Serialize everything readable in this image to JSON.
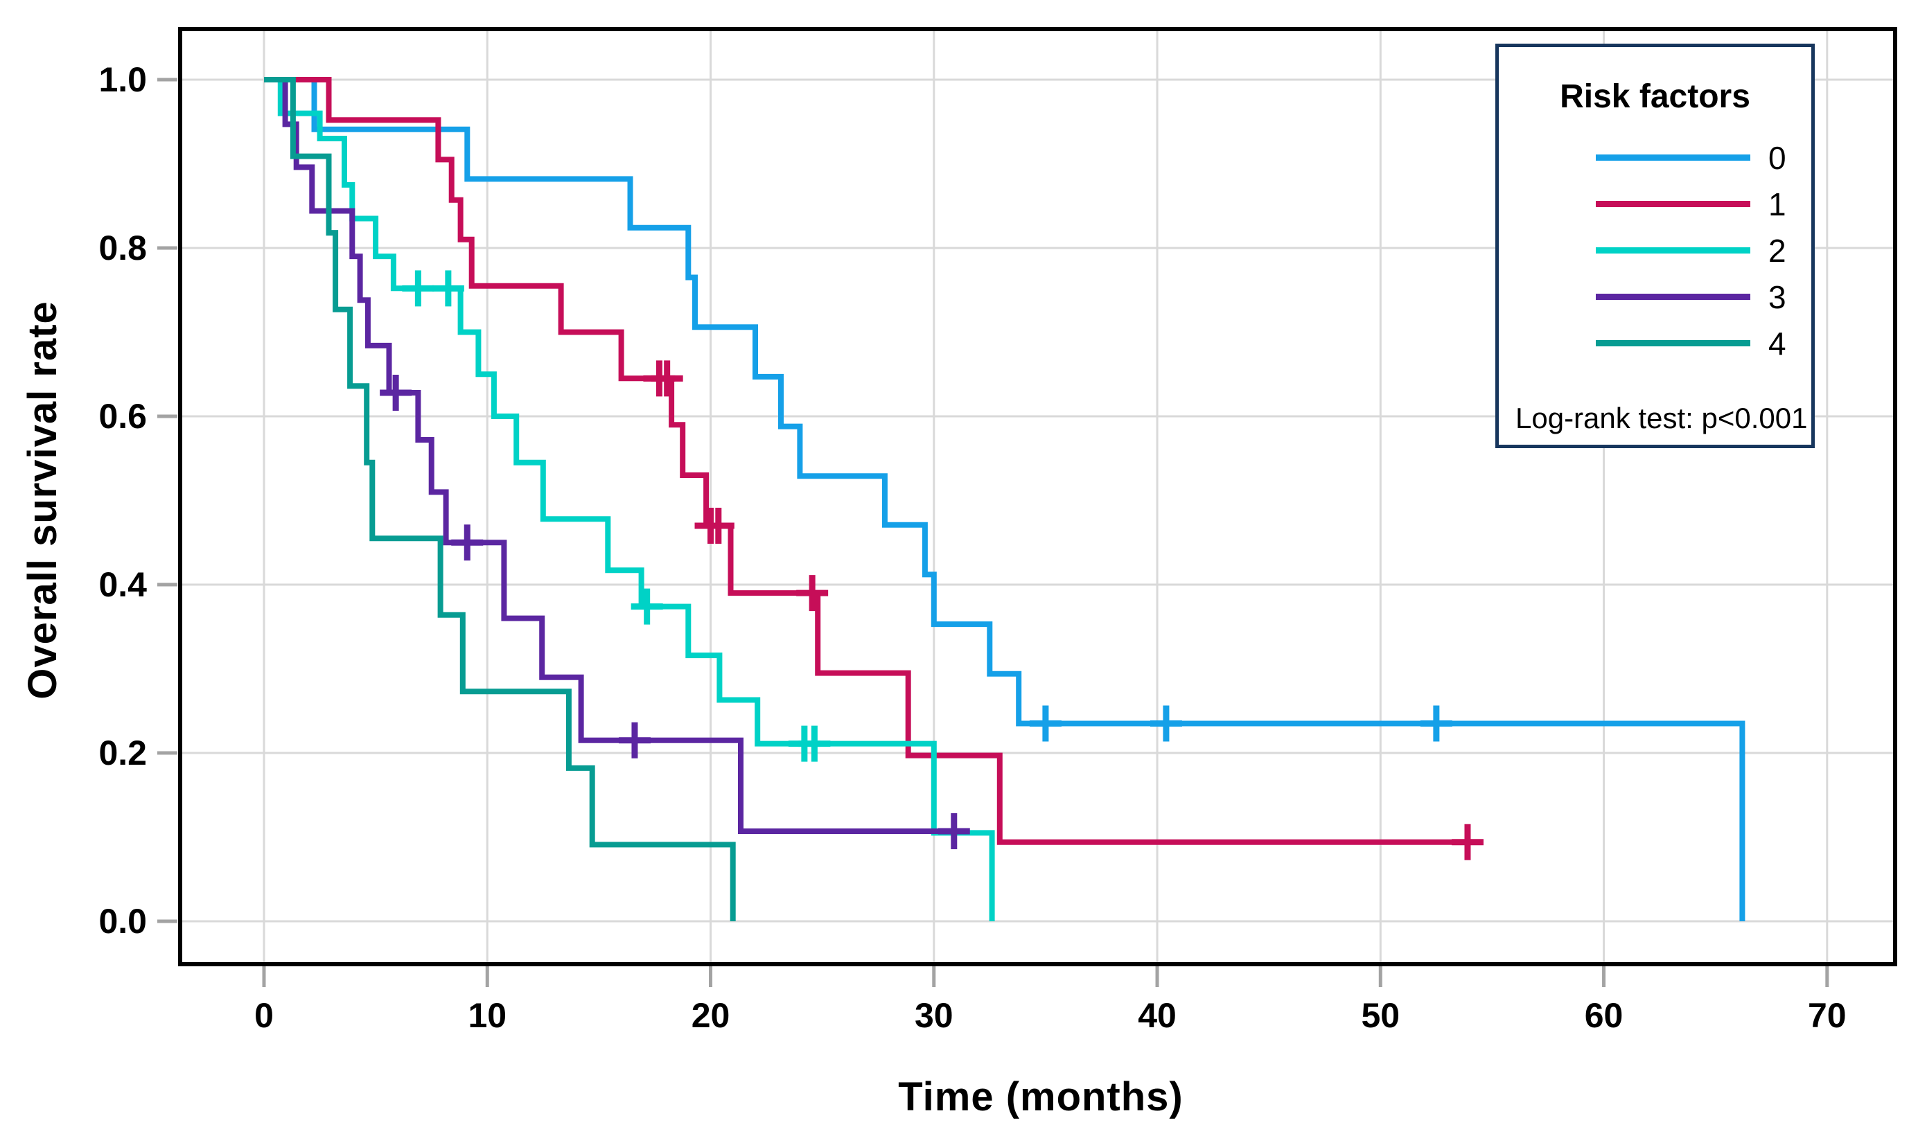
{
  "figure": {
    "x_axis_title": "Time (months)",
    "y_axis_title": "Overall survival rate"
  },
  "legend": {
    "title": "Risk factors",
    "items": [
      {
        "label": "0",
        "color": "#15A0E8"
      },
      {
        "label": "1",
        "color": "#C60E58"
      },
      {
        "label": "2",
        "color": "#00D2C6"
      },
      {
        "label": "3",
        "color": "#5B26A1"
      },
      {
        "label": "4",
        "color": "#079C92"
      }
    ],
    "note": "Log-rank test: p<0.001",
    "border_color": "#17365D"
  },
  "colors": {
    "background": "#FFFFFF",
    "frame": "#000000",
    "grid": "#D9D9D9",
    "tick": "#A3A3A3",
    "text": "#000000"
  },
  "chart_data": {
    "type": "line",
    "subtype": "kaplan-meier-step",
    "title": "",
    "xlabel": "Time (months)",
    "ylabel": "Overall survival rate",
    "xlim": [
      -3.8,
      73.0
    ],
    "ylim": [
      -0.05,
      1.06
    ],
    "xticks": [
      0,
      10,
      20,
      30,
      40,
      50,
      60,
      70
    ],
    "xtick_labels": [
      "0",
      "10",
      "20",
      "30",
      "40",
      "50",
      "60",
      "70"
    ],
    "yticks": [
      0.0,
      0.2,
      0.4,
      0.6,
      0.8,
      1.0
    ],
    "ytick_labels": [
      "0.0",
      "0.2",
      "0.4",
      "0.6",
      "0.8",
      "1.0"
    ],
    "grid": true,
    "legend_position": "top-right",
    "annotation": "Log-rank test: p<0.001",
    "series": [
      {
        "name": "0",
        "color": "#15A0E8",
        "start": [
          0,
          1.0
        ],
        "steps": [
          [
            2.25,
            0.941
          ],
          [
            9.1,
            0.882
          ],
          [
            16.4,
            0.824
          ],
          [
            19.0,
            0.765
          ],
          [
            19.3,
            0.706
          ],
          [
            22.0,
            0.647
          ],
          [
            23.15,
            0.588
          ],
          [
            24.0,
            0.529
          ],
          [
            27.8,
            0.471
          ],
          [
            29.6,
            0.412
          ],
          [
            30.0,
            0.353
          ],
          [
            32.5,
            0.294
          ],
          [
            33.8,
            0.235
          ],
          [
            66.2,
            0.0
          ]
        ],
        "end": 66.2,
        "censors": [
          [
            35.0,
            0.235
          ],
          [
            40.4,
            0.235
          ],
          [
            52.5,
            0.235
          ]
        ]
      },
      {
        "name": "1",
        "color": "#C60E58",
        "start": [
          0,
          1.0
        ],
        "steps": [
          [
            2.9,
            0.952
          ],
          [
            7.8,
            0.905
          ],
          [
            8.4,
            0.857
          ],
          [
            8.8,
            0.81
          ],
          [
            9.3,
            0.755
          ],
          [
            13.3,
            0.7
          ],
          [
            16.0,
            0.645
          ],
          [
            18.25,
            0.59
          ],
          [
            18.75,
            0.53
          ],
          [
            19.8,
            0.47
          ],
          [
            20.9,
            0.39
          ],
          [
            24.8,
            0.295
          ],
          [
            28.85,
            0.197
          ],
          [
            32.95,
            0.094
          ]
        ],
        "end": 54.5,
        "censors": [
          [
            17.7,
            0.645
          ],
          [
            18.05,
            0.645
          ],
          [
            20.0,
            0.47
          ],
          [
            20.35,
            0.47
          ],
          [
            24.55,
            0.39
          ],
          [
            53.9,
            0.094
          ]
        ]
      },
      {
        "name": "2",
        "color": "#00D2C6",
        "start": [
          0,
          1.0
        ],
        "steps": [
          [
            0.74,
            0.96
          ],
          [
            2.5,
            0.93
          ],
          [
            3.6,
            0.875
          ],
          [
            3.95,
            0.835
          ],
          [
            5.0,
            0.79
          ],
          [
            5.8,
            0.752
          ],
          [
            8.8,
            0.7
          ],
          [
            9.6,
            0.65
          ],
          [
            10.3,
            0.6
          ],
          [
            11.3,
            0.545
          ],
          [
            12.5,
            0.478
          ],
          [
            15.4,
            0.417
          ],
          [
            16.9,
            0.374
          ],
          [
            19.0,
            0.316
          ],
          [
            20.4,
            0.263
          ],
          [
            22.1,
            0.211
          ],
          [
            30.0,
            0.105
          ],
          [
            32.6,
            0.0
          ]
        ],
        "end": 32.6,
        "censors": [
          [
            6.9,
            0.752
          ],
          [
            8.25,
            0.752
          ],
          [
            17.15,
            0.374
          ],
          [
            24.2,
            0.211
          ],
          [
            24.65,
            0.211
          ]
        ]
      },
      {
        "name": "3",
        "color": "#5B26A1",
        "start": [
          0,
          1.0
        ],
        "steps": [
          [
            0.95,
            0.947
          ],
          [
            1.45,
            0.896
          ],
          [
            2.15,
            0.844
          ],
          [
            3.95,
            0.79
          ],
          [
            4.3,
            0.738
          ],
          [
            4.65,
            0.684
          ],
          [
            5.6,
            0.628
          ],
          [
            6.9,
            0.572
          ],
          [
            7.5,
            0.51
          ],
          [
            8.15,
            0.45
          ],
          [
            10.75,
            0.36
          ],
          [
            12.45,
            0.29
          ],
          [
            14.2,
            0.215
          ],
          [
            21.35,
            0.107
          ]
        ],
        "end": 31.6,
        "censors": [
          [
            5.9,
            0.628
          ],
          [
            9.1,
            0.45
          ],
          [
            16.6,
            0.215
          ],
          [
            30.9,
            0.107
          ]
        ]
      },
      {
        "name": "4",
        "color": "#079C92",
        "start": [
          0,
          1.0
        ],
        "steps": [
          [
            1.3,
            0.909
          ],
          [
            2.9,
            0.818
          ],
          [
            3.2,
            0.727
          ],
          [
            3.85,
            0.636
          ],
          [
            4.6,
            0.545
          ],
          [
            4.85,
            0.455
          ],
          [
            7.9,
            0.364
          ],
          [
            8.9,
            0.273
          ],
          [
            13.65,
            0.182
          ],
          [
            14.7,
            0.091
          ],
          [
            21.0,
            0.0
          ]
        ],
        "end": 21.0,
        "censors": []
      }
    ]
  }
}
